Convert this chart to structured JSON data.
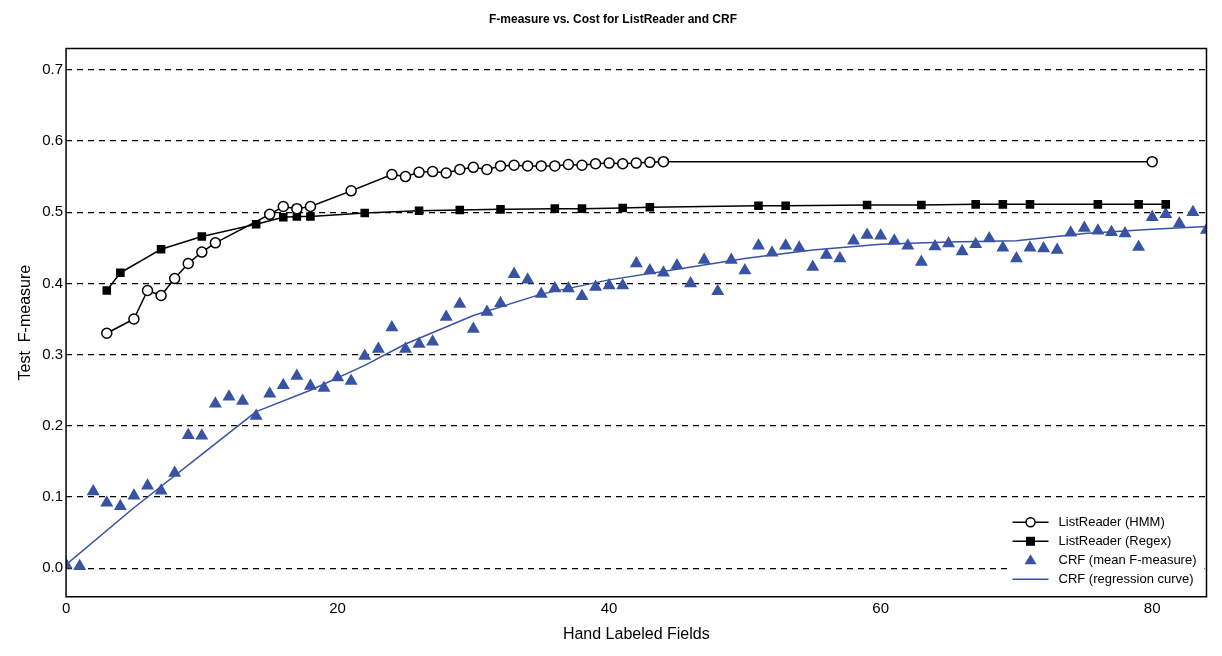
{
  "chart_data": {
    "type": "line",
    "title": "F-measure vs. Cost for ListReader and CRF",
    "xlabel": "Hand Labeled Fields",
    "ylabel": "Test  F-measure",
    "xlim": [
      0,
      84
    ],
    "ylim": [
      -0.04,
      0.73
    ],
    "xticks": [
      0,
      20,
      40,
      60,
      80
    ],
    "yticks": [
      {
        "value": 0,
        "label": "0.0"
      },
      0.1,
      0.2,
      0.3,
      0.4,
      0.5,
      0.6,
      0.7
    ],
    "grid": "y",
    "legend": "bottom right",
    "series": [
      {
        "name": "ListReader (HMM)",
        "type": "line",
        "marker": "circle",
        "color": "#000000",
        "x": [
          3,
          5,
          6,
          7,
          8,
          9,
          10,
          11,
          15,
          16,
          17,
          18,
          21,
          24,
          25,
          26,
          27,
          28,
          29,
          30,
          31,
          32,
          33,
          34,
          35,
          36,
          37,
          38,
          39,
          40,
          41,
          42,
          43,
          44,
          80
        ],
        "values": [
          0.33,
          0.35,
          0.39,
          0.383,
          0.407,
          0.428,
          0.444,
          0.457,
          0.497,
          0.508,
          0.505,
          0.508,
          0.53,
          0.553,
          0.55,
          0.556,
          0.557,
          0.555,
          0.56,
          0.563,
          0.56,
          0.565,
          0.566,
          0.565,
          0.565,
          0.565,
          0.567,
          0.566,
          0.568,
          0.569,
          0.568,
          0.569,
          0.57,
          0.571,
          0.571
        ]
      },
      {
        "name": "ListReader (Regex)",
        "type": "line",
        "marker": "square",
        "color": "#000000",
        "x": [
          3,
          4,
          7,
          10,
          14,
          16,
          17,
          18,
          22,
          26,
          29,
          32,
          36,
          38,
          41,
          43,
          51,
          53,
          59,
          63,
          67,
          69,
          71,
          76,
          79,
          81
        ],
        "values": [
          0.39,
          0.415,
          0.448,
          0.466,
          0.483,
          0.493,
          0.494,
          0.494,
          0.499,
          0.502,
          0.503,
          0.504,
          0.505,
          0.505,
          0.506,
          0.507,
          0.509,
          0.509,
          0.51,
          0.51,
          0.511,
          0.511,
          0.511,
          0.511,
          0.511,
          0.511
        ]
      },
      {
        "name": "CRF (mean F-measure)",
        "type": "scatter",
        "marker": "triangle",
        "color": "#3953a4",
        "x": [
          0,
          1,
          2,
          3,
          4,
          5,
          6,
          7,
          8,
          9,
          10,
          11,
          12,
          13,
          14,
          15,
          16,
          17,
          18,
          19,
          20,
          21,
          22,
          23,
          24,
          25,
          26,
          27,
          28,
          29,
          30,
          31,
          32,
          33,
          34,
          35,
          36,
          37,
          38,
          39,
          40,
          41,
          42,
          43,
          44,
          45,
          46,
          47,
          48,
          49,
          50,
          51,
          52,
          53,
          54,
          55,
          56,
          57,
          58,
          59,
          60,
          61,
          62,
          63,
          64,
          65,
          66,
          67,
          68,
          69,
          70,
          71,
          72,
          73,
          74,
          75,
          76,
          77,
          78,
          79,
          80,
          81,
          82,
          83,
          84
        ],
        "values": [
          0.005,
          0.003,
          0.108,
          0.092,
          0.087,
          0.102,
          0.116,
          0.109,
          0.134,
          0.187,
          0.186,
          0.231,
          0.241,
          0.235,
          0.214,
          0.245,
          0.257,
          0.27,
          0.256,
          0.253,
          0.268,
          0.263,
          0.298,
          0.308,
          0.338,
          0.308,
          0.315,
          0.318,
          0.353,
          0.371,
          0.336,
          0.36,
          0.372,
          0.413,
          0.405,
          0.385,
          0.393,
          0.393,
          0.382,
          0.395,
          0.397,
          0.397,
          0.428,
          0.418,
          0.415,
          0.425,
          0.4,
          0.433,
          0.389,
          0.433,
          0.418,
          0.453,
          0.443,
          0.453,
          0.45,
          0.423,
          0.44,
          0.435,
          0.46,
          0.468,
          0.467,
          0.46,
          0.453,
          0.43,
          0.452,
          0.456,
          0.445,
          0.455,
          0.463,
          0.45,
          0.435,
          0.45,
          0.449,
          0.447,
          0.471,
          0.478,
          0.474,
          0.472,
          0.47,
          0.451,
          0.493,
          0.497,
          0.484,
          0.5,
          0.475
        ]
      },
      {
        "name": "CRF (regression curve)",
        "type": "line",
        "marker": "none",
        "color": "#3953a4",
        "x": [
          0,
          5,
          10,
          14,
          18,
          22,
          25,
          30,
          35,
          40,
          45,
          50,
          55,
          60,
          65,
          70,
          75,
          80,
          84
        ],
        "values": [
          0.005,
          0.085,
          0.16,
          0.22,
          0.25,
          0.285,
          0.315,
          0.355,
          0.385,
          0.405,
          0.42,
          0.435,
          0.447,
          0.455,
          0.458,
          0.46,
          0.47,
          0.476,
          0.48
        ]
      }
    ]
  }
}
